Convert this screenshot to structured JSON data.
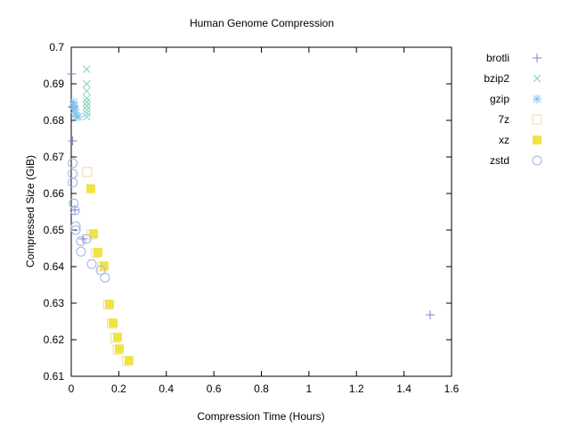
{
  "chart_data": {
    "type": "scatter",
    "title": "Human Genome Compression",
    "xlabel": "Compression Time (Hours)",
    "ylabel": "Compressed Size (GiB)",
    "xlim": [
      0,
      1.6
    ],
    "ylim": [
      0.61,
      0.7
    ],
    "xticks": [
      "0",
      "0.2",
      "0.4",
      "0.6",
      "0.8",
      "1",
      "1.2",
      "1.4",
      "1.6"
    ],
    "yticks": [
      "0.61",
      "0.62",
      "0.63",
      "0.64",
      "0.65",
      "0.66",
      "0.67",
      "0.68",
      "0.69",
      "0.7"
    ],
    "grid": false,
    "legend_position": "top-right-outside",
    "series": [
      {
        "name": "brotli",
        "marker": "plus",
        "color": "#8a7cc8",
        "points": [
          [
            0.002,
            0.6927
          ],
          [
            0.004,
            0.6837
          ],
          [
            0.006,
            0.6744
          ],
          [
            0.01,
            0.6835
          ],
          [
            0.015,
            0.6555
          ],
          [
            0.05,
            0.6476
          ],
          [
            1.51,
            0.6268
          ]
        ]
      },
      {
        "name": "bzip2",
        "marker": "cross",
        "color": "#7fd1bd",
        "points": [
          [
            0.065,
            0.694
          ],
          [
            0.065,
            0.69
          ],
          [
            0.065,
            0.688
          ],
          [
            0.065,
            0.686
          ],
          [
            0.065,
            0.685
          ],
          [
            0.065,
            0.684
          ],
          [
            0.065,
            0.683
          ],
          [
            0.065,
            0.682
          ],
          [
            0.065,
            0.681
          ]
        ]
      },
      {
        "name": "gzip",
        "marker": "star",
        "color": "#7ec6ee",
        "points": [
          [
            0.01,
            0.685
          ],
          [
            0.012,
            0.684
          ],
          [
            0.015,
            0.683
          ],
          [
            0.018,
            0.682
          ],
          [
            0.02,
            0.681
          ],
          [
            0.03,
            0.681
          ]
        ]
      },
      {
        "name": "7z",
        "marker": "open-square",
        "color": "#f2d8a2",
        "points": [
          [
            0.067,
            0.6659
          ],
          [
            0.085,
            0.6488
          ],
          [
            0.105,
            0.6438
          ],
          [
            0.13,
            0.64
          ],
          [
            0.155,
            0.6296
          ],
          [
            0.17,
            0.6244
          ],
          [
            0.185,
            0.6205
          ],
          [
            0.195,
            0.6173
          ],
          [
            0.235,
            0.6142
          ]
        ]
      },
      {
        "name": "xz",
        "marker": "filled-square",
        "color": "#f0e442",
        "points": [
          [
            0.082,
            0.6613
          ],
          [
            0.094,
            0.649
          ],
          [
            0.112,
            0.6439
          ],
          [
            0.138,
            0.6402
          ],
          [
            0.161,
            0.6297
          ],
          [
            0.176,
            0.6246
          ],
          [
            0.195,
            0.6207
          ],
          [
            0.202,
            0.6175
          ],
          [
            0.243,
            0.6143
          ]
        ]
      },
      {
        "name": "zstd",
        "marker": "open-circle",
        "color": "#9fb2e0",
        "points": [
          [
            0.006,
            0.6683
          ],
          [
            0.006,
            0.6654
          ],
          [
            0.006,
            0.663
          ],
          [
            0.01,
            0.6573
          ],
          [
            0.015,
            0.6554
          ],
          [
            0.019,
            0.651
          ],
          [
            0.019,
            0.65
          ],
          [
            0.041,
            0.647
          ],
          [
            0.041,
            0.6441
          ],
          [
            0.064,
            0.6476
          ],
          [
            0.086,
            0.6407
          ],
          [
            0.124,
            0.639
          ],
          [
            0.142,
            0.637
          ]
        ]
      }
    ]
  }
}
